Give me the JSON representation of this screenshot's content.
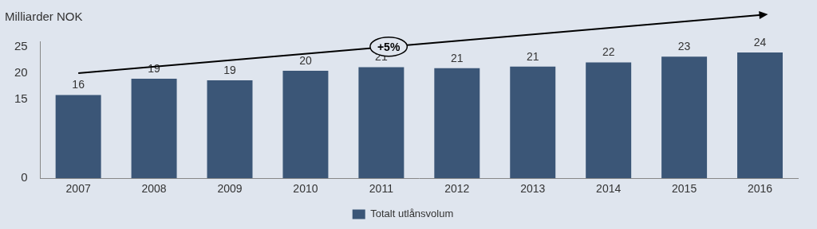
{
  "chart_data": {
    "type": "bar",
    "ylabel": "Milliarder NOK",
    "annotations": [
      "+5%"
    ],
    "categories": [
      "2007",
      "2008",
      "2009",
      "2010",
      "2011",
      "2012",
      "2013",
      "2014",
      "2015",
      "2016"
    ],
    "series": [
      {
        "name": "Totalt utlånsvolum",
        "color": "#3b5677",
        "values": [
          15.8,
          18.9,
          18.6,
          20.4,
          21.1,
          20.9,
          21.2,
          22.0,
          23.1,
          23.9
        ],
        "value_labels": [
          "16",
          "19",
          "19",
          "20",
          "21",
          "21",
          "21",
          "22",
          "23",
          "24"
        ]
      }
    ],
    "ylim": [
      0,
      26
    ],
    "yticks": [
      0,
      15,
      20,
      25
    ],
    "grid": false,
    "legend": "bottom",
    "data_labels": true
  }
}
